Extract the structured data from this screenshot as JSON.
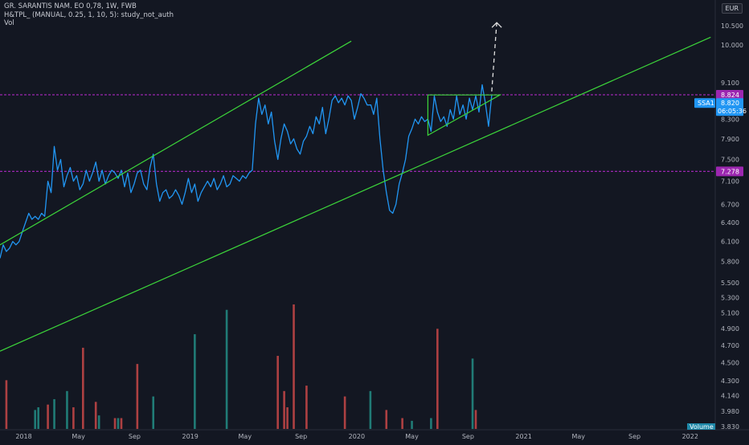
{
  "header": {
    "title": "GR. SARANTIS NAM. EO 0,78, 1W, FWB",
    "indicator": "H&TPL_ (MANUAL, 0.25, 1, 10, 5): study_not_auth",
    "volume_label": "Vol",
    "currency": "EUR"
  },
  "price_tags": {
    "resistance": {
      "value": "8.824",
      "color": "#9c27b0"
    },
    "support": {
      "value": "7.278",
      "color": "#9c27b0"
    },
    "last": {
      "symbol": "SSA1",
      "value": "8.820",
      "countdown": "06:05:36",
      "color": "#2196f3"
    }
  },
  "volume_tag": "Volume",
  "colors": {
    "background": "#131722",
    "price_line": "#2196f3",
    "channel": "#3cd53a",
    "level": "#9c27b0",
    "vol_up": "#26a69a",
    "vol_down": "#ef5350"
  },
  "chart_data": {
    "type": "line",
    "title": "GR. SARANTIS NAM. EO 0,78, 1W, FWB",
    "y_scale": "log",
    "ylim": [
      3.8,
      11.2
    ],
    "xlim": [
      "2017-11-10",
      "2022-02-25"
    ],
    "x_ticks": [
      {
        "label": "2018",
        "date": "2018-01-01"
      },
      {
        "label": "May",
        "date": "2018-05-01"
      },
      {
        "label": "Sep",
        "date": "2018-09-01"
      },
      {
        "label": "2019",
        "date": "2019-01-01"
      },
      {
        "label": "May",
        "date": "2019-05-01"
      },
      {
        "label": "Sep",
        "date": "2019-09-01"
      },
      {
        "label": "2020",
        "date": "2020-01-01"
      },
      {
        "label": "May",
        "date": "2020-05-01"
      },
      {
        "label": "Sep",
        "date": "2020-09-01"
      },
      {
        "label": "2021",
        "date": "2021-01-01"
      },
      {
        "label": "May",
        "date": "2021-05-01"
      },
      {
        "label": "Sep",
        "date": "2021-09-01"
      },
      {
        "label": "2022",
        "date": "2022-01-01"
      }
    ],
    "y_ticks": [
      10.5,
      10.0,
      9.1,
      8.3,
      7.9,
      7.5,
      7.1,
      6.7,
      6.4,
      6.1,
      5.8,
      5.5,
      5.3,
      5.1,
      4.9,
      4.7,
      4.5,
      4.3,
      4.14,
      3.98,
      3.83
    ],
    "y_tick_labels": [
      "10.500",
      "10.000",
      "9.100",
      "8.300",
      "7.900",
      "7.500",
      "7.100",
      "6.700",
      "6.400",
      "6.100",
      "5.800",
      "5.500",
      "5.300",
      "5.100",
      "4.900",
      "4.700",
      "4.500",
      "4.300",
      "4.140",
      "3.980",
      "3.830"
    ],
    "series": [
      {
        "kind": "price",
        "points": [
          [
            "2017-11-10",
            5.85
          ],
          [
            "2017-11-17",
            6.05
          ],
          [
            "2017-11-24",
            5.95
          ],
          [
            "2017-12-01",
            6.0
          ],
          [
            "2017-12-08",
            6.1
          ],
          [
            "2017-12-15",
            6.05
          ],
          [
            "2017-12-22",
            6.1
          ],
          [
            "2017-12-29",
            6.25
          ],
          [
            "2018-01-05",
            6.4
          ],
          [
            "2018-01-12",
            6.55
          ],
          [
            "2018-01-19",
            6.45
          ],
          [
            "2018-01-26",
            6.5
          ],
          [
            "2018-02-02",
            6.45
          ],
          [
            "2018-02-09",
            6.55
          ],
          [
            "2018-02-16",
            6.5
          ],
          [
            "2018-02-23",
            7.1
          ],
          [
            "2018-03-02",
            6.9
          ],
          [
            "2018-03-09",
            7.75
          ],
          [
            "2018-03-16",
            7.3
          ],
          [
            "2018-03-23",
            7.5
          ],
          [
            "2018-03-30",
            7.0
          ],
          [
            "2018-04-06",
            7.2
          ],
          [
            "2018-04-13",
            7.35
          ],
          [
            "2018-04-20",
            7.1
          ],
          [
            "2018-04-27",
            7.2
          ],
          [
            "2018-05-04",
            6.95
          ],
          [
            "2018-05-11",
            7.05
          ],
          [
            "2018-05-18",
            7.3
          ],
          [
            "2018-05-25",
            7.1
          ],
          [
            "2018-06-01",
            7.25
          ],
          [
            "2018-06-08",
            7.45
          ],
          [
            "2018-06-15",
            7.1
          ],
          [
            "2018-06-22",
            7.3
          ],
          [
            "2018-06-29",
            7.05
          ],
          [
            "2018-07-06",
            7.2
          ],
          [
            "2018-07-13",
            7.3
          ],
          [
            "2018-07-20",
            7.25
          ],
          [
            "2018-07-27",
            7.15
          ],
          [
            "2018-08-03",
            7.3
          ],
          [
            "2018-08-10",
            7.0
          ],
          [
            "2018-08-17",
            7.25
          ],
          [
            "2018-08-24",
            6.9
          ],
          [
            "2018-08-31",
            7.05
          ],
          [
            "2018-09-07",
            7.25
          ],
          [
            "2018-09-14",
            7.3
          ],
          [
            "2018-09-21",
            7.05
          ],
          [
            "2018-09-28",
            6.95
          ],
          [
            "2018-10-05",
            7.35
          ],
          [
            "2018-10-12",
            7.6
          ],
          [
            "2018-10-19",
            7.05
          ],
          [
            "2018-10-26",
            6.75
          ],
          [
            "2018-11-02",
            6.9
          ],
          [
            "2018-11-09",
            6.95
          ],
          [
            "2018-11-16",
            6.8
          ],
          [
            "2018-11-23",
            6.85
          ],
          [
            "2018-11-30",
            6.95
          ],
          [
            "2018-12-07",
            6.85
          ],
          [
            "2018-12-14",
            6.7
          ],
          [
            "2018-12-21",
            6.9
          ],
          [
            "2018-12-28",
            7.15
          ],
          [
            "2019-01-04",
            6.9
          ],
          [
            "2019-01-11",
            7.05
          ],
          [
            "2019-01-18",
            6.75
          ],
          [
            "2019-01-25",
            6.9
          ],
          [
            "2019-02-01",
            7.0
          ],
          [
            "2019-02-08",
            7.1
          ],
          [
            "2019-02-15",
            7.0
          ],
          [
            "2019-02-22",
            7.15
          ],
          [
            "2019-03-01",
            6.95
          ],
          [
            "2019-03-08",
            7.05
          ],
          [
            "2019-03-15",
            7.2
          ],
          [
            "2019-03-22",
            7.0
          ],
          [
            "2019-03-29",
            7.05
          ],
          [
            "2019-04-05",
            7.2
          ],
          [
            "2019-04-12",
            7.15
          ],
          [
            "2019-04-19",
            7.1
          ],
          [
            "2019-04-26",
            7.2
          ],
          [
            "2019-05-03",
            7.15
          ],
          [
            "2019-05-10",
            7.25
          ],
          [
            "2019-05-17",
            7.3
          ],
          [
            "2019-05-24",
            8.2
          ],
          [
            "2019-05-31",
            8.75
          ],
          [
            "2019-06-07",
            8.4
          ],
          [
            "2019-06-14",
            8.6
          ],
          [
            "2019-06-21",
            8.2
          ],
          [
            "2019-06-28",
            8.45
          ],
          [
            "2019-07-05",
            7.85
          ],
          [
            "2019-07-12",
            7.5
          ],
          [
            "2019-07-19",
            7.9
          ],
          [
            "2019-07-26",
            8.2
          ],
          [
            "2019-08-02",
            8.05
          ],
          [
            "2019-08-09",
            7.8
          ],
          [
            "2019-08-16",
            7.9
          ],
          [
            "2019-08-23",
            7.7
          ],
          [
            "2019-08-30",
            7.6
          ],
          [
            "2019-09-06",
            7.85
          ],
          [
            "2019-09-13",
            7.95
          ],
          [
            "2019-09-20",
            8.15
          ],
          [
            "2019-09-27",
            8.0
          ],
          [
            "2019-10-04",
            8.35
          ],
          [
            "2019-10-11",
            8.2
          ],
          [
            "2019-10-18",
            8.55
          ],
          [
            "2019-10-25",
            8.0
          ],
          [
            "2019-11-01",
            8.3
          ],
          [
            "2019-11-08",
            8.7
          ],
          [
            "2019-11-15",
            8.8
          ],
          [
            "2019-11-22",
            8.65
          ],
          [
            "2019-11-29",
            8.75
          ],
          [
            "2019-12-06",
            8.6
          ],
          [
            "2019-12-13",
            8.8
          ],
          [
            "2019-12-20",
            8.7
          ],
          [
            "2019-12-27",
            8.3
          ],
          [
            "2020-01-03",
            8.55
          ],
          [
            "2020-01-10",
            8.85
          ],
          [
            "2020-01-17",
            8.75
          ],
          [
            "2020-01-24",
            8.6
          ],
          [
            "2020-02-01",
            8.6
          ],
          [
            "2020-02-07",
            8.4
          ],
          [
            "2020-02-14",
            8.75
          ],
          [
            "2020-02-21",
            7.9
          ],
          [
            "2020-02-28",
            7.3
          ],
          [
            "2020-03-06",
            6.9
          ],
          [
            "2020-03-13",
            6.6
          ],
          [
            "2020-03-20",
            6.55
          ],
          [
            "2020-03-27",
            6.7
          ],
          [
            "2020-04-03",
            7.05
          ],
          [
            "2020-04-10",
            7.25
          ],
          [
            "2020-04-17",
            7.5
          ],
          [
            "2020-04-24",
            7.95
          ],
          [
            "2020-05-01",
            8.1
          ],
          [
            "2020-05-08",
            8.3
          ],
          [
            "2020-05-15",
            8.2
          ],
          [
            "2020-05-22",
            8.35
          ],
          [
            "2020-05-29",
            8.25
          ],
          [
            "2020-06-05",
            8.3
          ],
          [
            "2020-06-12",
            8.05
          ],
          [
            "2020-06-19",
            8.8
          ],
          [
            "2020-06-26",
            8.45
          ],
          [
            "2020-07-03",
            8.25
          ],
          [
            "2020-07-10",
            8.35
          ],
          [
            "2020-07-17",
            8.15
          ],
          [
            "2020-07-24",
            8.5
          ],
          [
            "2020-07-31",
            8.3
          ],
          [
            "2020-08-07",
            8.8
          ],
          [
            "2020-08-14",
            8.4
          ],
          [
            "2020-08-21",
            8.6
          ],
          [
            "2020-08-28",
            8.3
          ],
          [
            "2020-09-04",
            8.75
          ],
          [
            "2020-09-11",
            8.5
          ],
          [
            "2020-09-18",
            8.8
          ],
          [
            "2020-09-25",
            8.45
          ],
          [
            "2020-10-02",
            9.05
          ],
          [
            "2020-10-09",
            8.65
          ],
          [
            "2020-10-16",
            8.15
          ],
          [
            "2020-10-23",
            8.82
          ]
        ]
      },
      {
        "kind": "trend",
        "name": "channel-upper",
        "points": [
          [
            "2017-11-10",
            6.05
          ],
          [
            "2019-12-20",
            10.1
          ]
        ]
      },
      {
        "kind": "trend",
        "name": "channel-lower",
        "points": [
          [
            "2017-11-10",
            4.63
          ],
          [
            "2022-02-15",
            10.2
          ]
        ]
      },
      {
        "kind": "trend",
        "name": "triangle",
        "points": [
          [
            "2020-06-05",
            8.82
          ],
          [
            "2020-11-10",
            8.82
          ],
          [
            "2020-06-05",
            7.97
          ],
          [
            "2020-06-05",
            8.82
          ]
        ]
      },
      {
        "kind": "projection",
        "name": "target-arrow",
        "points": [
          [
            "2020-10-23",
            8.9
          ],
          [
            "2020-11-03",
            10.58
          ]
        ]
      }
    ],
    "levels": [
      {
        "name": "resistance",
        "value": 8.824
      },
      {
        "name": "support",
        "value": 7.278
      }
    ],
    "volume": [
      [
        "2017-11-24",
        0.9,
        "down"
      ],
      [
        "2018-01-26",
        0.35,
        "up"
      ],
      [
        "2018-02-02",
        0.4,
        "up"
      ],
      [
        "2018-02-23",
        0.45,
        "down"
      ],
      [
        "2018-03-09",
        0.55,
        "up"
      ],
      [
        "2018-04-06",
        0.7,
        "up"
      ],
      [
        "2018-04-20",
        0.4,
        "down"
      ],
      [
        "2018-05-11",
        1.5,
        "down"
      ],
      [
        "2018-06-08",
        0.5,
        "down"
      ],
      [
        "2018-06-15",
        0.25,
        "up"
      ],
      [
        "2018-07-20",
        0.2,
        "down"
      ],
      [
        "2018-07-27",
        0.2,
        "up"
      ],
      [
        "2018-08-03",
        0.2,
        "down"
      ],
      [
        "2018-09-07",
        1.2,
        "down"
      ],
      [
        "2018-10-12",
        0.6,
        "up"
      ],
      [
        "2019-01-11",
        1.75,
        "up"
      ],
      [
        "2019-03-22",
        2.2,
        "up"
      ],
      [
        "2019-07-12",
        1.35,
        "down"
      ],
      [
        "2019-07-26",
        0.7,
        "down"
      ],
      [
        "2019-08-02",
        0.4,
        "down"
      ],
      [
        "2019-08-16",
        2.3,
        "down"
      ],
      [
        "2019-09-13",
        0.8,
        "down"
      ],
      [
        "2019-12-06",
        0.6,
        "down"
      ],
      [
        "2020-01-31",
        0.7,
        "up"
      ],
      [
        "2020-03-06",
        0.35,
        "down"
      ],
      [
        "2020-04-10",
        0.2,
        "down"
      ],
      [
        "2020-05-01",
        0.15,
        "up"
      ],
      [
        "2020-06-12",
        0.2,
        "up"
      ],
      [
        "2020-06-26",
        1.85,
        "down"
      ],
      [
        "2020-09-11",
        1.3,
        "up"
      ],
      [
        "2020-09-18",
        0.35,
        "down"
      ]
    ]
  }
}
